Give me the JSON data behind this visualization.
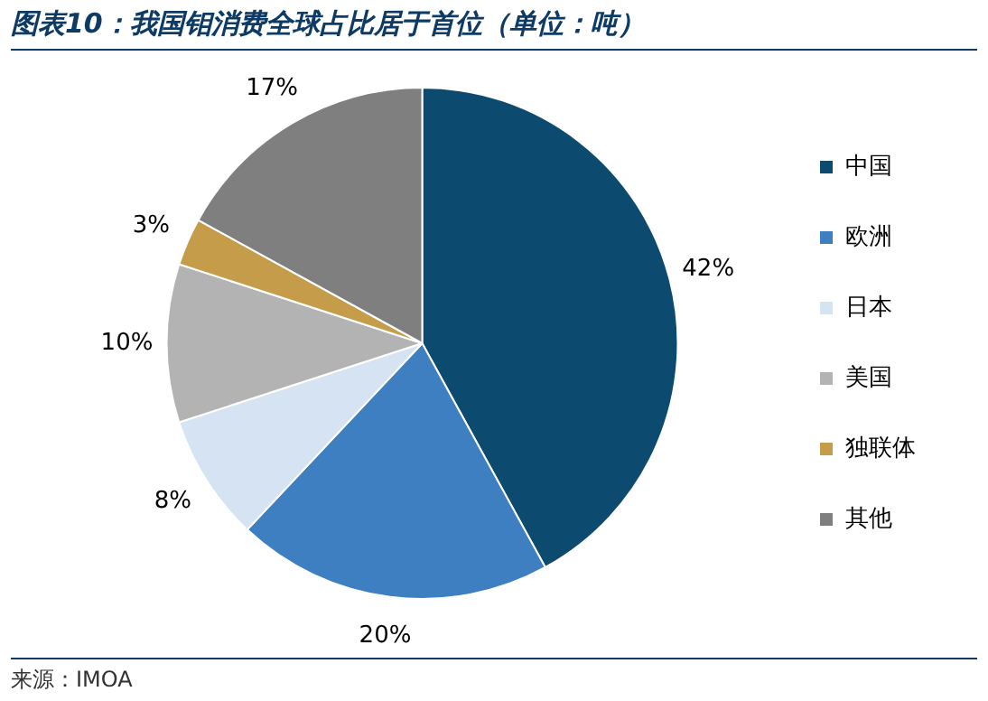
{
  "chart_data": {
    "type": "pie",
    "title": "图表10：我国钼消费全球占比居于首位（单位：吨）",
    "categories": [
      "中国",
      "欧洲",
      "日本",
      "美国",
      "独联体",
      "其他"
    ],
    "values": [
      42,
      20,
      8,
      10,
      3,
      17
    ],
    "colors": [
      "#0d4a70",
      "#3e7fc1",
      "#d5e3f2",
      "#b3b3b3",
      "#c59d4a",
      "#7f7f7f"
    ],
    "value_labels": [
      "42%",
      "20%",
      "8%",
      "10%",
      "3%",
      "17%"
    ],
    "legend": "right",
    "annotations": [
      "来源：IMOA"
    ]
  }
}
